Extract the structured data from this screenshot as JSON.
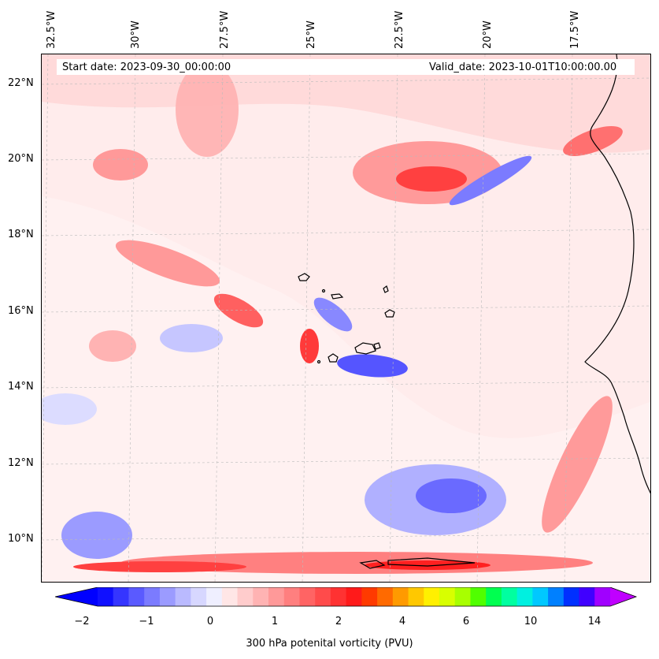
{
  "header": {
    "start_date": "Start date: 2023-09-30_00:00:00",
    "valid_date": "Valid_date: 2023-10-01T10:00:00.00"
  },
  "longitude_labels": [
    "32.5°W",
    "30°W",
    "27.5°W",
    "25°W",
    "22.5°W",
    "20°W",
    "17.5°W"
  ],
  "latitude_labels": [
    "22°N",
    "20°N",
    "18°N",
    "16°N",
    "14°N",
    "12°N",
    "10°N"
  ],
  "colorbar": {
    "tick_labels": [
      "−2",
      "−1",
      "0",
      "1",
      "2",
      "4",
      "6",
      "10",
      "14"
    ],
    "label": "300 hPa potenital vorticity (PVU)",
    "colors": [
      "#1010ff",
      "#3535ff",
      "#5a5aff",
      "#7b7bff",
      "#9b9bff",
      "#babaff",
      "#d7d7ff",
      "#efefff",
      "#ffe6e6",
      "#ffcccc",
      "#ffb3b3",
      "#ff9999",
      "#ff7f7f",
      "#ff6464",
      "#ff4b4b",
      "#ff3232",
      "#ff1a1a",
      "#ff3a00",
      "#ff6a00",
      "#ff9a00",
      "#ffc800",
      "#fff000",
      "#d8ff00",
      "#a8ff00",
      "#50ff00",
      "#00ff50",
      "#00ffa0",
      "#00f0e0",
      "#00c8ff",
      "#0080ff",
      "#0030ff",
      "#4000ff",
      "#a000ff"
    ],
    "under_color": "#0000ff",
    "over_color": "#c000ff"
  },
  "colors": {
    "background_pv": "#ffecec",
    "coastline": "#000000"
  }
}
